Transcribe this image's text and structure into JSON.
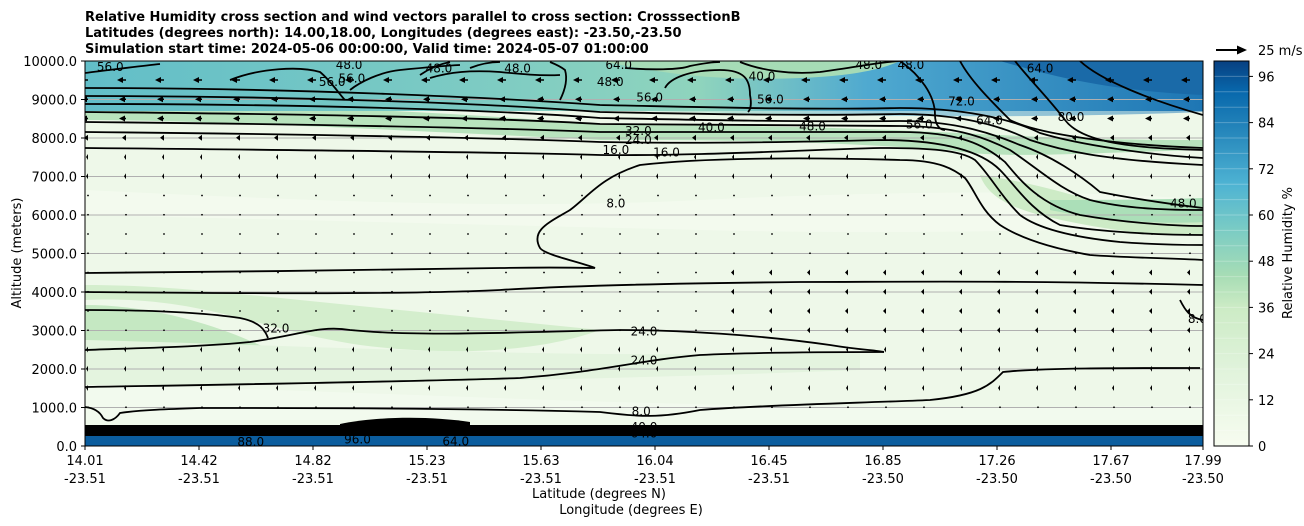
{
  "chart_data": {
    "type": "contour",
    "title_lines": [
      "Relative Humidity cross section and wind vectors parallel to cross section: CrosssectionB",
      "Latitudes (degrees north): 14.00,18.00, Longitudes (degrees east): -23.50,-23.50",
      "Simulation start time: 2024-05-06 00:00:00, Valid time: 2024-05-07 01:00:00"
    ],
    "ylabel": "Altitude (meters)",
    "xlabel": "Latitude (degrees N)",
    "xlabel2": "Longitude (degrees E)",
    "ylim": [
      0,
      10000
    ],
    "yticks": [
      "0.0",
      "1000.0",
      "2000.0",
      "3000.0",
      "4000.0",
      "5000.0",
      "6000.0",
      "7000.0",
      "8000.0",
      "9000.0",
      "10000.0"
    ],
    "xlim": [
      14.01,
      17.99
    ],
    "xticks": [
      {
        "lat": "14.01",
        "lon": "-23.51"
      },
      {
        "lat": "14.42",
        "lon": "-23.51"
      },
      {
        "lat": "14.82",
        "lon": "-23.51"
      },
      {
        "lat": "15.23",
        "lon": "-23.51"
      },
      {
        "lat": "15.63",
        "lon": "-23.51"
      },
      {
        "lat": "16.04",
        "lon": "-23.51"
      },
      {
        "lat": "16.45",
        "lon": "-23.51"
      },
      {
        "lat": "16.85",
        "lon": "-23.50"
      },
      {
        "lat": "17.26",
        "lon": "-23.50"
      },
      {
        "lat": "17.67",
        "lon": "-23.50"
      },
      {
        "lat": "17.99",
        "lon": "-23.50"
      }
    ],
    "colorbar": {
      "label": "Relative Humidity %",
      "ticks": [
        "0",
        "12",
        "24",
        "36",
        "48",
        "60",
        "72",
        "84",
        "96"
      ],
      "range": [
        0,
        100
      ],
      "levels": 25
    },
    "quiver_key": "25 m/s",
    "contour_labels": [
      {
        "text": "8.0",
        "lat": 15.99,
        "alt": 895
      },
      {
        "text": "24.0",
        "lat": 16.0,
        "alt": 2220
      },
      {
        "text": "24.0",
        "lat": 16.0,
        "alt": 2970
      },
      {
        "text": "32.0",
        "lat": 14.69,
        "alt": 3050
      },
      {
        "text": "8.0",
        "lat": 15.9,
        "alt": 6300
      },
      {
        "text": "16.0",
        "lat": 15.9,
        "alt": 7690
      },
      {
        "text": "16.0",
        "lat": 16.08,
        "alt": 7620
      },
      {
        "text": "24.0",
        "lat": 15.98,
        "alt": 7950
      },
      {
        "text": "32.0",
        "lat": 15.98,
        "alt": 8180
      },
      {
        "text": "40.0",
        "lat": 16.24,
        "alt": 8270
      },
      {
        "text": "48.0",
        "lat": 16.6,
        "alt": 8300
      },
      {
        "text": "56.0",
        "lat": 16.98,
        "alt": 8350
      },
      {
        "text": "64.0",
        "lat": 17.23,
        "alt": 8450
      },
      {
        "text": "72.0",
        "lat": 17.13,
        "alt": 8950
      },
      {
        "text": "80.0",
        "lat": 17.52,
        "alt": 8550
      },
      {
        "text": "48.0",
        "lat": 17.92,
        "alt": 6300
      },
      {
        "text": "8.0",
        "lat": 17.97,
        "alt": 3300
      },
      {
        "text": "56.0",
        "lat": 14.89,
        "alt": 9460
      },
      {
        "text": "56.0",
        "lat": 14.96,
        "alt": 9550
      },
      {
        "text": "48.0",
        "lat": 15.27,
        "alt": 9800
      },
      {
        "text": "48.0",
        "lat": 15.55,
        "alt": 9800
      },
      {
        "text": "48.0",
        "lat": 15.88,
        "alt": 9450
      },
      {
        "text": "56.0",
        "lat": 16.02,
        "alt": 9050
      },
      {
        "text": "64.0",
        "lat": 15.91,
        "alt": 9900
      },
      {
        "text": "40.0",
        "lat": 16.42,
        "alt": 9600
      },
      {
        "text": "56.0",
        "lat": 16.45,
        "alt": 9000
      },
      {
        "text": "48.0",
        "lat": 16.8,
        "alt": 9900
      },
      {
        "text": "64.0",
        "lat": 17.41,
        "alt": 9800
      },
      {
        "text": "56.0",
        "lat": 14.1,
        "alt": 9850
      },
      {
        "text": "48.0",
        "lat": 14.95,
        "alt": 9900
      },
      {
        "text": "48.0",
        "lat": 16.95,
        "alt": 9900
      },
      {
        "text": "88.0",
        "lat": 14.6,
        "alt": 100
      },
      {
        "text": "96.0",
        "lat": 14.98,
        "alt": 170
      },
      {
        "text": "64.0",
        "lat": 15.33,
        "alt": 120
      },
      {
        "text": "40.0",
        "lat": 16.0,
        "alt": 500
      },
      {
        "text": "64.0",
        "lat": 16.0,
        "alt": 330
      }
    ]
  }
}
